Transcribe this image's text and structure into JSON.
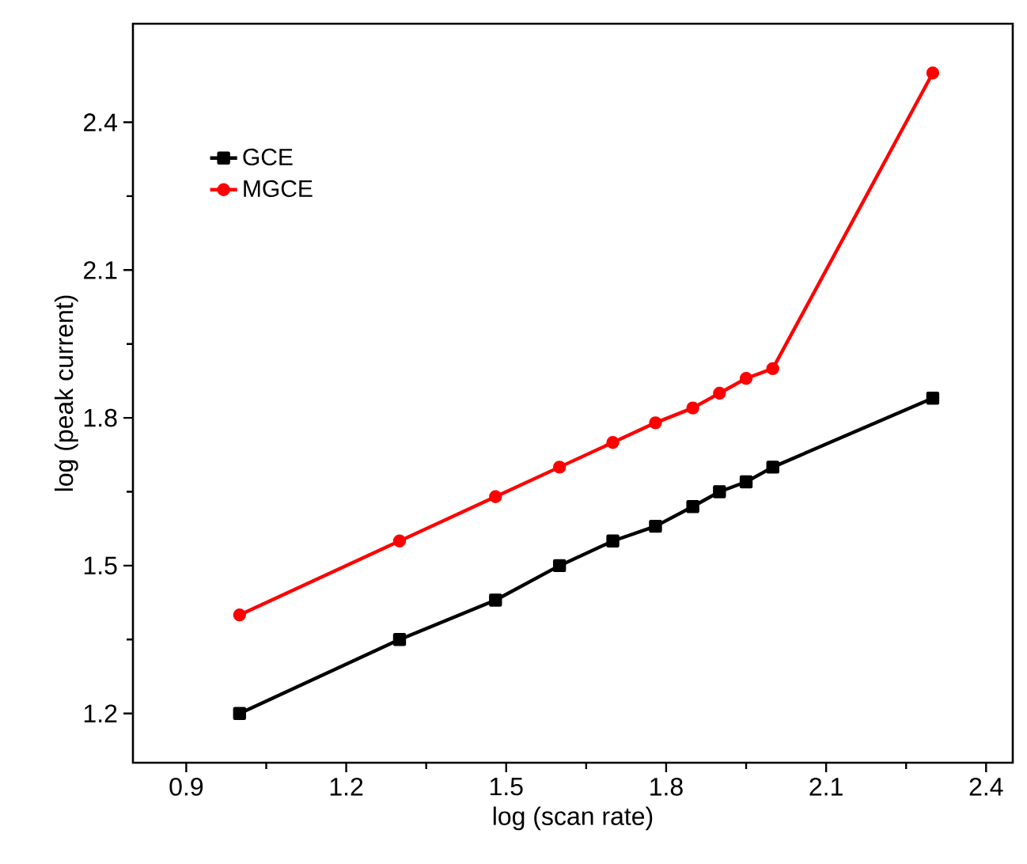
{
  "chart_data": {
    "type": "line",
    "xlabel": "log (scan rate)",
    "ylabel": "log (peak current)",
    "xlim": [
      0.8,
      2.45
    ],
    "ylim": [
      1.1,
      2.6
    ],
    "xticks": [
      0.9,
      1.2,
      1.5,
      1.8,
      2.1,
      2.4
    ],
    "yticks": [
      1.2,
      1.5,
      1.8,
      2.1,
      2.4
    ],
    "grid": false,
    "legend": "top left",
    "line_style": "solid",
    "series": [
      {
        "name": "GCE",
        "color": "#000000",
        "marker": "square",
        "x": [
          1.0,
          1.3,
          1.48,
          1.6,
          1.7,
          1.78,
          1.85,
          1.9,
          1.95,
          2.0,
          2.3
        ],
        "values": [
          1.2,
          1.35,
          1.43,
          1.5,
          1.55,
          1.58,
          1.62,
          1.65,
          1.67,
          1.7,
          1.84
        ]
      },
      {
        "name": "MGCE",
        "color": "#ff0000",
        "marker": "circle",
        "x": [
          1.0,
          1.3,
          1.48,
          1.6,
          1.7,
          1.78,
          1.85,
          1.9,
          1.95,
          2.0,
          2.3
        ],
        "values": [
          1.4,
          1.55,
          1.64,
          1.7,
          1.75,
          1.79,
          1.82,
          1.85,
          1.88,
          1.9,
          2.5
        ]
      }
    ]
  }
}
